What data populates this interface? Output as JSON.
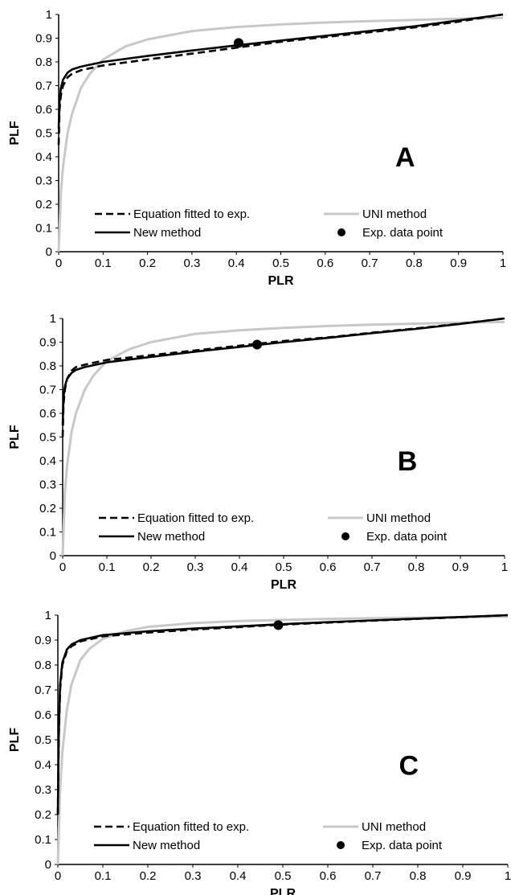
{
  "chart_data": [
    {
      "type": "line",
      "annotation": "A",
      "xlabel": "PLR",
      "ylabel": "PLF",
      "xlim": [
        0,
        1
      ],
      "ylim": [
        0,
        1
      ],
      "xticks": [
        "0",
        "0.1",
        "0.2",
        "0.3",
        "0.4",
        "0.5",
        "0.6",
        "0.7",
        "0.8",
        "0.9",
        "1"
      ],
      "yticks": [
        "0",
        "0.1",
        "0.2",
        "0.3",
        "0.4",
        "0.5",
        "0.6",
        "0.7",
        "0.8",
        "0.9",
        "1"
      ],
      "grid": false,
      "legend_position": "bottom",
      "series": [
        {
          "name": "Equation fitted to exp.",
          "style": "dashed",
          "color": "#000000",
          "x": [
            0,
            0.002,
            0.005,
            0.01,
            0.02,
            0.03,
            0.05,
            0.1,
            0.2,
            0.3,
            0.4,
            0.5,
            0.6,
            0.7,
            0.8,
            0.9,
            1
          ],
          "y": [
            0.45,
            0.6,
            0.66,
            0.7,
            0.735,
            0.75,
            0.765,
            0.785,
            0.81,
            0.835,
            0.86,
            0.885,
            0.905,
            0.925,
            0.945,
            0.97,
            1.0
          ]
        },
        {
          "name": "New method",
          "style": "solid",
          "color": "#000000",
          "x": [
            0,
            0.002,
            0.005,
            0.01,
            0.02,
            0.03,
            0.05,
            0.1,
            0.2,
            0.3,
            0.4,
            0.5,
            0.6,
            0.7,
            0.8,
            0.9,
            1
          ],
          "y": [
            0.52,
            0.63,
            0.69,
            0.725,
            0.755,
            0.768,
            0.78,
            0.8,
            0.825,
            0.848,
            0.87,
            0.89,
            0.91,
            0.93,
            0.95,
            0.975,
            1.0
          ]
        },
        {
          "name": "UNI method",
          "style": "solid",
          "color": "#c8c8c8",
          "x": [
            0,
            0.005,
            0.01,
            0.02,
            0.03,
            0.05,
            0.07,
            0.1,
            0.15,
            0.2,
            0.3,
            0.4,
            0.5,
            0.6,
            0.7,
            0.8,
            0.9,
            1
          ],
          "y": [
            0.0,
            0.25,
            0.36,
            0.5,
            0.58,
            0.69,
            0.75,
            0.81,
            0.865,
            0.895,
            0.93,
            0.947,
            0.958,
            0.966,
            0.972,
            0.977,
            0.982,
            0.985
          ]
        },
        {
          "name": "Exp. data point",
          "style": "marker",
          "color": "#000000",
          "x": [
            0.405
          ],
          "y": [
            0.88
          ]
        }
      ]
    },
    {
      "type": "line",
      "annotation": "B",
      "xlabel": "PLR",
      "ylabel": "PLF",
      "xlim": [
        0,
        1
      ],
      "ylim": [
        0,
        1
      ],
      "xticks": [
        "0",
        "0.1",
        "0.2",
        "0.3",
        "0.4",
        "0.5",
        "0.6",
        "0.7",
        "0.8",
        "0.9",
        "1"
      ],
      "yticks": [
        "0",
        "0.1",
        "0.2",
        "0.3",
        "0.4",
        "0.5",
        "0.6",
        "0.7",
        "0.8",
        "0.9",
        "1"
      ],
      "grid": false,
      "legend_position": "bottom",
      "series": [
        {
          "name": "Equation fitted to exp.",
          "style": "dashed",
          "color": "#000000",
          "x": [
            0,
            0.002,
            0.005,
            0.01,
            0.02,
            0.03,
            0.05,
            0.1,
            0.2,
            0.3,
            0.4,
            0.5,
            0.6,
            0.7,
            0.8,
            0.9,
            1
          ],
          "y": [
            0.5,
            0.64,
            0.7,
            0.745,
            0.78,
            0.795,
            0.805,
            0.825,
            0.845,
            0.865,
            0.885,
            0.905,
            0.92,
            0.94,
            0.958,
            0.978,
            1.0
          ]
        },
        {
          "name": "New method",
          "style": "solid",
          "color": "#000000",
          "x": [
            0,
            0.002,
            0.005,
            0.01,
            0.02,
            0.03,
            0.05,
            0.1,
            0.2,
            0.3,
            0.4,
            0.5,
            0.6,
            0.7,
            0.8,
            0.9,
            1
          ],
          "y": [
            0.55,
            0.67,
            0.715,
            0.745,
            0.77,
            0.783,
            0.795,
            0.815,
            0.838,
            0.86,
            0.88,
            0.9,
            0.918,
            0.938,
            0.956,
            0.977,
            1.0
          ]
        },
        {
          "name": "UNI method",
          "style": "solid",
          "color": "#c8c8c8",
          "x": [
            0,
            0.005,
            0.01,
            0.02,
            0.03,
            0.05,
            0.07,
            0.1,
            0.15,
            0.2,
            0.3,
            0.4,
            0.5,
            0.6,
            0.7,
            0.8,
            0.9,
            1
          ],
          "y": [
            0.0,
            0.27,
            0.38,
            0.52,
            0.6,
            0.7,
            0.76,
            0.82,
            0.87,
            0.9,
            0.935,
            0.95,
            0.96,
            0.968,
            0.974,
            0.978,
            0.982,
            0.985
          ]
        },
        {
          "name": "Exp. data point",
          "style": "marker",
          "color": "#000000",
          "x": [
            0.44
          ],
          "y": [
            0.89
          ]
        }
      ]
    },
    {
      "type": "line",
      "annotation": "C",
      "xlabel": "PLR",
      "ylabel": "PLF",
      "xlim": [
        0,
        1
      ],
      "ylim": [
        0,
        1
      ],
      "xticks": [
        "0",
        "0.1",
        "0.2",
        "0.3",
        "0.4",
        "0.5",
        "0.6",
        "0.7",
        "0.8",
        "0.9",
        "1"
      ],
      "yticks": [
        "0",
        "0.1",
        "0.2",
        "0.3",
        "0.4",
        "0.5",
        "0.6",
        "0.7",
        "0.8",
        "0.9",
        "1"
      ],
      "grid": false,
      "legend_position": "bottom",
      "series": [
        {
          "name": "Equation fitted to exp.",
          "style": "dashed",
          "color": "#000000",
          "x": [
            0,
            0.002,
            0.005,
            0.01,
            0.02,
            0.03,
            0.05,
            0.1,
            0.2,
            0.3,
            0.4,
            0.5,
            0.6,
            0.7,
            0.8,
            0.9,
            1
          ],
          "y": [
            0.2,
            0.5,
            0.7,
            0.8,
            0.855,
            0.875,
            0.895,
            0.915,
            0.93,
            0.942,
            0.952,
            0.962,
            0.97,
            0.978,
            0.985,
            0.992,
            1.0
          ]
        },
        {
          "name": "New method",
          "style": "solid",
          "color": "#000000",
          "x": [
            0,
            0.002,
            0.005,
            0.01,
            0.02,
            0.03,
            0.05,
            0.1,
            0.2,
            0.3,
            0.4,
            0.5,
            0.6,
            0.7,
            0.8,
            0.9,
            1
          ],
          "y": [
            0.2,
            0.52,
            0.72,
            0.81,
            0.862,
            0.882,
            0.9,
            0.92,
            0.935,
            0.946,
            0.955,
            0.964,
            0.972,
            0.979,
            0.986,
            0.993,
            1.0
          ]
        },
        {
          "name": "UNI method",
          "style": "solid",
          "color": "#c8c8c8",
          "x": [
            0,
            0.005,
            0.01,
            0.02,
            0.03,
            0.05,
            0.07,
            0.1,
            0.15,
            0.2,
            0.3,
            0.4,
            0.5,
            0.6,
            0.7,
            0.8,
            0.9,
            1
          ],
          "y": [
            0.0,
            0.3,
            0.45,
            0.62,
            0.72,
            0.82,
            0.865,
            0.905,
            0.935,
            0.953,
            0.968,
            0.976,
            0.981,
            0.985,
            0.988,
            0.99,
            0.992,
            0.994
          ]
        },
        {
          "name": "Exp. data point",
          "style": "marker",
          "color": "#000000",
          "x": [
            0.49
          ],
          "y": [
            0.96
          ]
        }
      ]
    }
  ]
}
